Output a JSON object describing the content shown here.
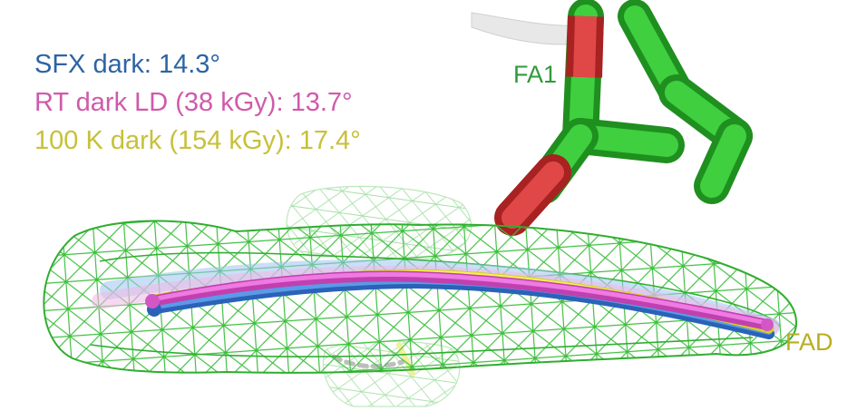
{
  "legend": {
    "sfx": {
      "text": "SFX dark: 14.3°",
      "color": "#2e63a3"
    },
    "rt": {
      "text": "RT dark LD (38 kGy): 13.7°",
      "color": "#d05aaa"
    },
    "k100": {
      "text": "100 K dark (154 kGy): 17.4°",
      "color": "#c8c03a"
    }
  },
  "labels": {
    "fa1": {
      "text": "FA1",
      "color": "#2f9a3c"
    },
    "fad": {
      "text": "FAD",
      "color": "#b8ae20"
    }
  },
  "colors": {
    "mesh": "#3fbf3f",
    "carbon": "#2fb52f",
    "oxygen": "#d23a3a",
    "ribbon": "#e6e6e6",
    "sfx_stick": "#3f7fd6",
    "rt_stick": "#d356c6",
    "k100_stick": "#f2ea3a"
  }
}
